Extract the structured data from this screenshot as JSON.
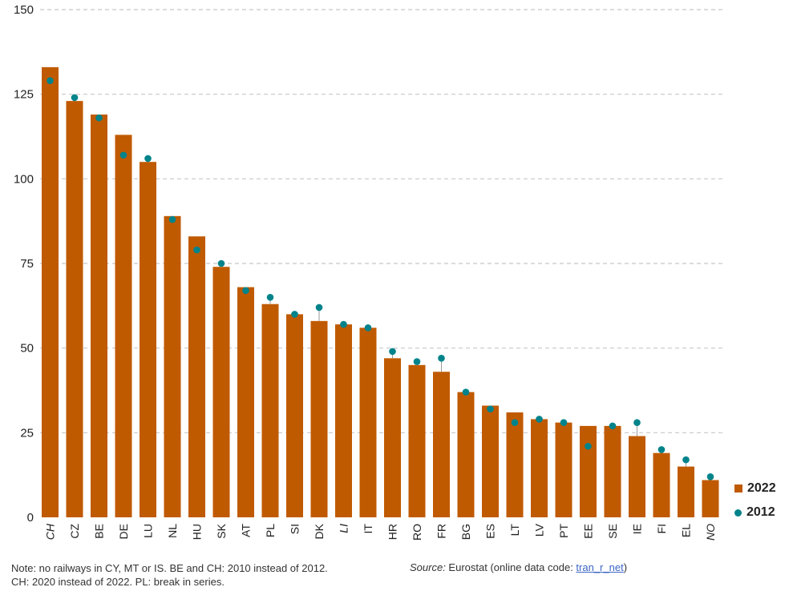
{
  "chart_data": {
    "type": "bar",
    "categories": [
      "CH",
      "CZ",
      "BE",
      "DE",
      "LU",
      "NL",
      "HU",
      "SK",
      "AT",
      "PL",
      "SI",
      "DK",
      "LI",
      "IT",
      "HR",
      "RO",
      "FR",
      "BG",
      "ES",
      "LT",
      "LV",
      "PT",
      "EE",
      "SE",
      "IE",
      "FI",
      "EL",
      "NO"
    ],
    "italic_categories": [
      "CH",
      "LI",
      "NO"
    ],
    "series": [
      {
        "name": "2022",
        "kind": "bar",
        "values": [
          133,
          123,
          119,
          113,
          105,
          89,
          83,
          74,
          68,
          63,
          60,
          58,
          57,
          56,
          47,
          45,
          43,
          37,
          33,
          31,
          29,
          28,
          27,
          27,
          24,
          19,
          15,
          11
        ]
      },
      {
        "name": "2012",
        "kind": "dot",
        "values": [
          129,
          124,
          118,
          107,
          106,
          88,
          79,
          75,
          67,
          65,
          60,
          62,
          57,
          56,
          49,
          46,
          47,
          37,
          32,
          28,
          29,
          28,
          21,
          27,
          28,
          20,
          17,
          12
        ]
      }
    ],
    "ylim": [
      0,
      150
    ],
    "yticks": [
      0,
      25,
      50,
      75,
      100,
      125,
      150
    ],
    "grid": true,
    "legend": "bottom-right",
    "colors": {
      "bar": "#c05a00",
      "dot": "#00838a",
      "grid": "#c8c8c8"
    }
  },
  "notes": {
    "line1": "Note: no railways in CY, MT or IS. BE and CH: 2010 instead of 2012.",
    "line2": "CH: 2020 instead of 2022. PL: break in series."
  },
  "source": {
    "label": "Source:",
    "text": " Eurostat (online data code: ",
    "code": "tran_r_net",
    "close": ")"
  }
}
